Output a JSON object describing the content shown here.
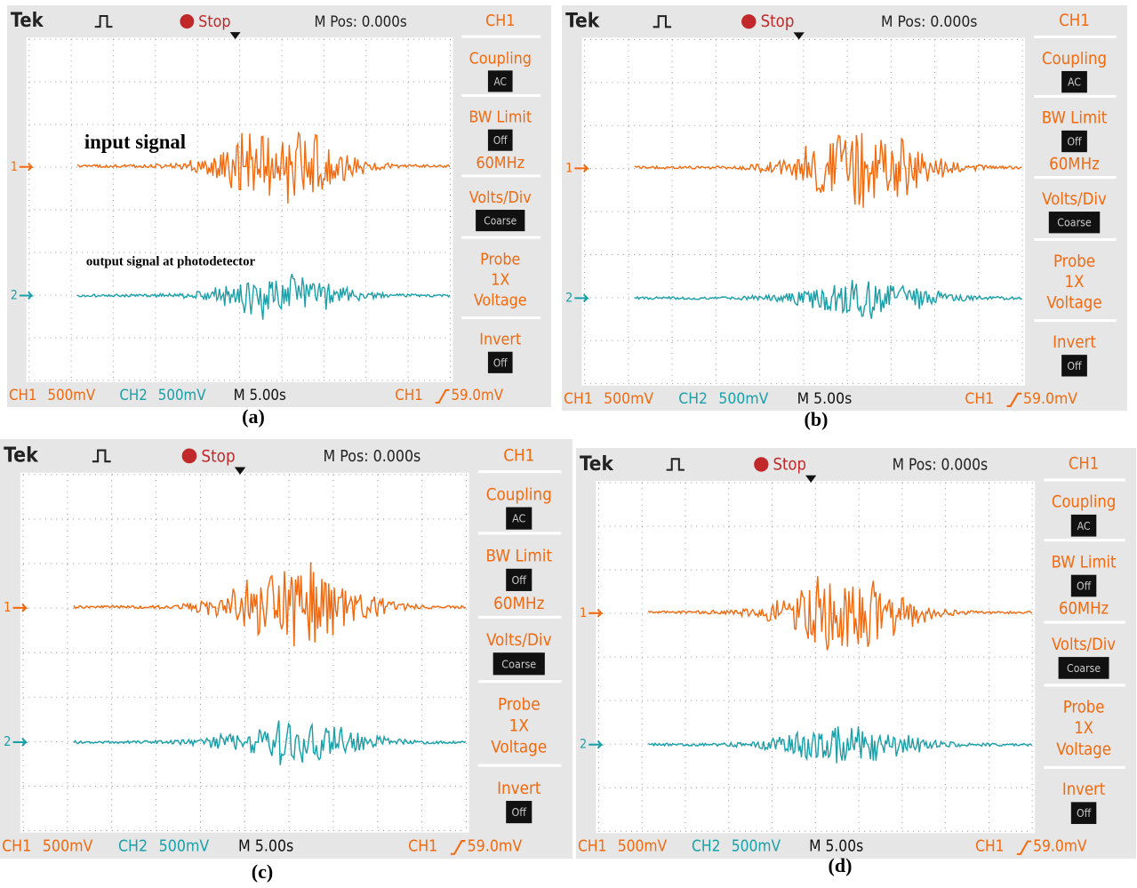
{
  "panels": [
    {
      "header": {
        "brand": "Tek",
        "status": "Stop",
        "position": "M Pos: 0.000s"
      },
      "menu": {
        "title": "CH1",
        "items": [
          {
            "label": "Coupling",
            "value": "AC"
          },
          {
            "label": "BW Limit",
            "value": "Off",
            "extra": "60MHz"
          },
          {
            "label": "Volts/Div",
            "value": "Coarse"
          },
          {
            "label": "Probe",
            "value": "1X",
            "extra": "Voltage"
          },
          {
            "label": "Invert",
            "value": "Off"
          }
        ]
      },
      "markers": [
        "1",
        "2"
      ],
      "footer": {
        "ch1": "CH1",
        "ch1_scale": "500mV",
        "ch2": "CH2",
        "ch2_scale": "500mV",
        "time": "M 5.00s",
        "trigger_source": "CH1",
        "trigger_level": "59.0mV"
      },
      "annotations": [
        "input signal",
        "output signal at photodetector"
      ],
      "caption": "(a)"
    },
    {
      "header": {
        "brand": "Tek",
        "status": "Stop",
        "position": "M Pos: 0.000s"
      },
      "menu": {
        "title": "CH1",
        "items": [
          {
            "label": "Coupling",
            "value": "AC"
          },
          {
            "label": "BW Limit",
            "value": "Off",
            "extra": "60MHz"
          },
          {
            "label": "Volts/Div",
            "value": "Coarse"
          },
          {
            "label": "Probe",
            "value": "1X",
            "extra": "Voltage"
          },
          {
            "label": "Invert",
            "value": "Off"
          }
        ]
      },
      "markers": [
        "1",
        "2"
      ],
      "footer": {
        "ch1": "CH1",
        "ch1_scale": "500mV",
        "ch2": "CH2",
        "ch2_scale": "500mV",
        "time": "M 5.00s",
        "trigger_source": "CH1",
        "trigger_level": "59.0mV"
      },
      "caption": "(b)"
    },
    {
      "header": {
        "brand": "Tek",
        "status": "Stop",
        "position": "M Pos: 0.000s"
      },
      "menu": {
        "title": "CH1",
        "items": [
          {
            "label": "Coupling",
            "value": "AC"
          },
          {
            "label": "BW Limit",
            "value": "Off",
            "extra": "60MHz"
          },
          {
            "label": "Volts/Div",
            "value": "Coarse"
          },
          {
            "label": "Probe",
            "value": "1X",
            "extra": "Voltage"
          },
          {
            "label": "Invert",
            "value": "Off"
          }
        ]
      },
      "markers": [
        "1",
        "2"
      ],
      "footer": {
        "ch1": "CH1",
        "ch1_scale": "500mV",
        "ch2": "CH2",
        "ch2_scale": "500mV",
        "time": "M 5.00s",
        "trigger_source": "CH1",
        "trigger_level": "59.0mV"
      },
      "caption": "(c)"
    },
    {
      "header": {
        "brand": "Tek",
        "status": "Stop",
        "position": "M Pos: 0.000s"
      },
      "menu": {
        "title": "CH1",
        "items": [
          {
            "label": "Coupling",
            "value": "AC"
          },
          {
            "label": "BW Limit",
            "value": "Off",
            "extra": "60MHz"
          },
          {
            "label": "Volts/Div",
            "value": "Coarse"
          },
          {
            "label": "Probe",
            "value": "1X",
            "extra": "Voltage"
          },
          {
            "label": "Invert",
            "value": "Off"
          }
        ]
      },
      "markers": [
        "1",
        "2"
      ],
      "footer": {
        "ch1": "CH1",
        "ch1_scale": "500mV",
        "ch2": "CH2",
        "ch2_scale": "500mV",
        "time": "M 5.00s",
        "trigger_source": "CH1",
        "trigger_level": "59.0mV"
      },
      "caption": "(d)"
    }
  ]
}
